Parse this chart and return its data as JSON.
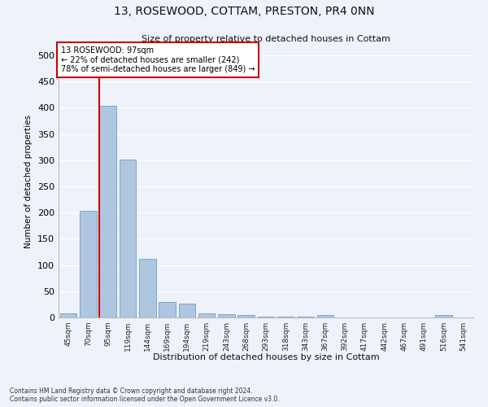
{
  "title": "13, ROSEWOOD, COTTAM, PRESTON, PR4 0NN",
  "subtitle": "Size of property relative to detached houses in Cottam",
  "xlabel": "Distribution of detached houses by size in Cottam",
  "ylabel": "Number of detached properties",
  "categories": [
    "45sqm",
    "70sqm",
    "95sqm",
    "119sqm",
    "144sqm",
    "169sqm",
    "194sqm",
    "219sqm",
    "243sqm",
    "268sqm",
    "293sqm",
    "318sqm",
    "343sqm",
    "367sqm",
    "392sqm",
    "417sqm",
    "442sqm",
    "467sqm",
    "491sqm",
    "516sqm",
    "541sqm"
  ],
  "values": [
    8,
    204,
    403,
    301,
    112,
    30,
    26,
    8,
    6,
    4,
    2,
    1,
    1,
    4,
    0,
    0,
    0,
    0,
    0,
    4,
    0
  ],
  "bar_color": "#aec6e0",
  "bar_edge_color": "#6a9fc8",
  "property_line_label": "13 ROSEWOOD: 97sqm",
  "annotation_line1": "← 22% of detached houses are smaller (242)",
  "annotation_line2": "78% of semi-detached houses are larger (849) →",
  "annotation_box_color": "#ffffff",
  "annotation_box_edge_color": "#cc0000",
  "property_line_color": "#cc0000",
  "ylim": [
    0,
    520
  ],
  "yticks": [
    0,
    50,
    100,
    150,
    200,
    250,
    300,
    350,
    400,
    450,
    500
  ],
  "bg_color": "#eef2fa",
  "grid_color": "#ffffff",
  "footer_line1": "Contains HM Land Registry data © Crown copyright and database right 2024.",
  "footer_line2": "Contains public sector information licensed under the Open Government Licence v3.0."
}
